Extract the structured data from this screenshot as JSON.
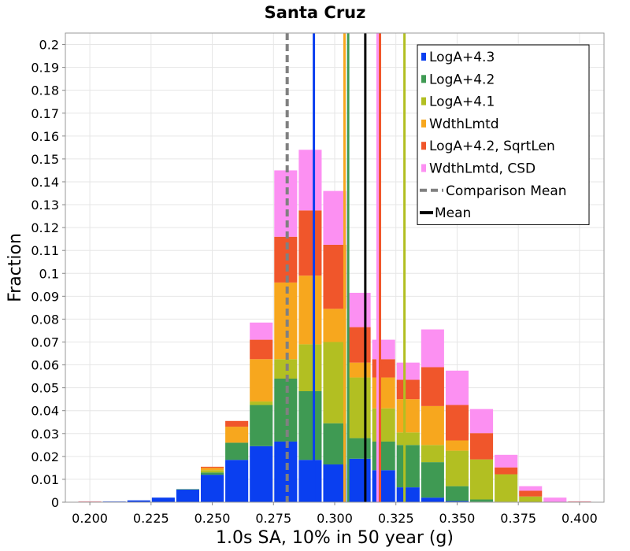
{
  "chart_data": {
    "type": "bar",
    "stacked": true,
    "title": "Santa Cruz",
    "xlabel": "1.0s SA, 10% in 50 year (g)",
    "ylabel": "Fraction",
    "xlim": [
      0.19,
      0.41
    ],
    "ylim": [
      0,
      0.205
    ],
    "bin_width": 0.01,
    "grid": true,
    "legend_position": "top-right",
    "x_ticks": [
      "0.200",
      "0.225",
      "0.250",
      "0.275",
      "0.300",
      "0.325",
      "0.350",
      "0.375",
      "0.400"
    ],
    "y_ticks": [
      "0",
      "0.01",
      "0.02",
      "0.03",
      "0.04",
      "0.05",
      "0.06",
      "0.07",
      "0.08",
      "0.09",
      "0.1",
      "0.11",
      "0.12",
      "0.13",
      "0.14",
      "0.15",
      "0.16",
      "0.17",
      "0.18",
      "0.19",
      "0.2"
    ],
    "x": [
      0.2,
      0.21,
      0.22,
      0.23,
      0.24,
      0.25,
      0.26,
      0.27,
      0.28,
      0.29,
      0.3,
      0.31,
      0.32,
      0.33,
      0.34,
      0.35,
      0.36,
      0.37,
      0.38,
      0.39,
      0.4
    ],
    "series": [
      {
        "name": "LogA+4.3",
        "color": "#0a3ff0",
        "values": [
          0,
          0.0003,
          0.0008,
          0.002,
          0.0055,
          0.012,
          0.0185,
          0.0245,
          0.0265,
          0.0185,
          0.0165,
          0.019,
          0.014,
          0.0065,
          0.002,
          0.0005,
          0.0002,
          0,
          0,
          0,
          0
        ]
      },
      {
        "name": "LogA+4.2",
        "color": "#3f9a53",
        "values": [
          0,
          0,
          0,
          0,
          0.0002,
          0.001,
          0.0075,
          0.018,
          0.0275,
          0.03,
          0.018,
          0.009,
          0.0125,
          0.0185,
          0.0155,
          0.0065,
          0.001,
          0.0002,
          0,
          0,
          0
        ]
      },
      {
        "name": "LogA+4.1",
        "color": "#b2bf22",
        "values": [
          0,
          0,
          0,
          0,
          0,
          0.001,
          0,
          0.0015,
          0.0085,
          0.0205,
          0.0355,
          0.0265,
          0.0145,
          0.0055,
          0.0075,
          0.0155,
          0.0175,
          0.012,
          0.0025,
          0,
          0
        ]
      },
      {
        "name": "WdthLmtd",
        "color": "#f7a71e",
        "values": [
          0.0002,
          0,
          0,
          0,
          0,
          0.001,
          0.007,
          0.0185,
          0.0335,
          0.03,
          0.0145,
          0.0065,
          0.0135,
          0.0145,
          0.017,
          0.0045,
          0,
          0,
          0,
          0,
          0
        ]
      },
      {
        "name": "LogA+4.2, SqrtLen",
        "color": "#f0562b",
        "values": [
          0.0001,
          0,
          0,
          0,
          0,
          0.0005,
          0.0025,
          0.0085,
          0.02,
          0.0285,
          0.028,
          0.0155,
          0.008,
          0.0085,
          0.017,
          0.0155,
          0.0115,
          0.003,
          0.0025,
          0,
          0.0003
        ]
      },
      {
        "name": "WdthLmtd, CSD",
        "color": "#fc90f2",
        "values": [
          0.0001,
          0,
          0,
          0,
          0,
          0,
          0,
          0.0075,
          0.029,
          0.0265,
          0.0235,
          0.015,
          0.0085,
          0.0075,
          0.0165,
          0.015,
          0.0105,
          0.0055,
          0.002,
          0.002,
          0.0001
        ]
      }
    ],
    "reference_lines": [
      {
        "name": "LogA+4.3",
        "x": 0.2915,
        "color": "#0a3ff0",
        "style": "solid"
      },
      {
        "name": "LogA+4.2",
        "x": 0.3055,
        "color": "#3f9a53",
        "style": "solid"
      },
      {
        "name": "LogA+4.1",
        "x": 0.3285,
        "color": "#b2bf22",
        "style": "solid"
      },
      {
        "name": "WdthLmtd",
        "x": 0.304,
        "color": "#f7a71e",
        "style": "solid"
      },
      {
        "name": "LogA+4.2, SqrtLen",
        "x": 0.3185,
        "color": "#f0562b",
        "style": "solid"
      },
      {
        "name": "WdthLmtd, CSD",
        "x": 0.3175,
        "color": "#fc90f2",
        "style": "solid"
      },
      {
        "name": "Comparison Mean",
        "x": 0.2806,
        "color": "#808080",
        "style": "dashed"
      },
      {
        "name": "Mean",
        "x": 0.3125,
        "color": "#000000",
        "style": "solid"
      }
    ],
    "legend": [
      {
        "label": "LogA+4.3",
        "color": "#0a3ff0",
        "kind": "box"
      },
      {
        "label": "LogA+4.2",
        "color": "#3f9a53",
        "kind": "box"
      },
      {
        "label": "LogA+4.1",
        "color": "#b2bf22",
        "kind": "box"
      },
      {
        "label": "WdthLmtd",
        "color": "#f7a71e",
        "kind": "box"
      },
      {
        "label": "LogA+4.2, SqrtLen",
        "color": "#f0562b",
        "kind": "box"
      },
      {
        "label": "WdthLmtd, CSD",
        "color": "#fc90f2",
        "kind": "box"
      },
      {
        "label": "Comparison Mean",
        "color": "#808080",
        "kind": "dashed"
      },
      {
        "label": "Mean",
        "color": "#000000",
        "kind": "line"
      }
    ]
  }
}
